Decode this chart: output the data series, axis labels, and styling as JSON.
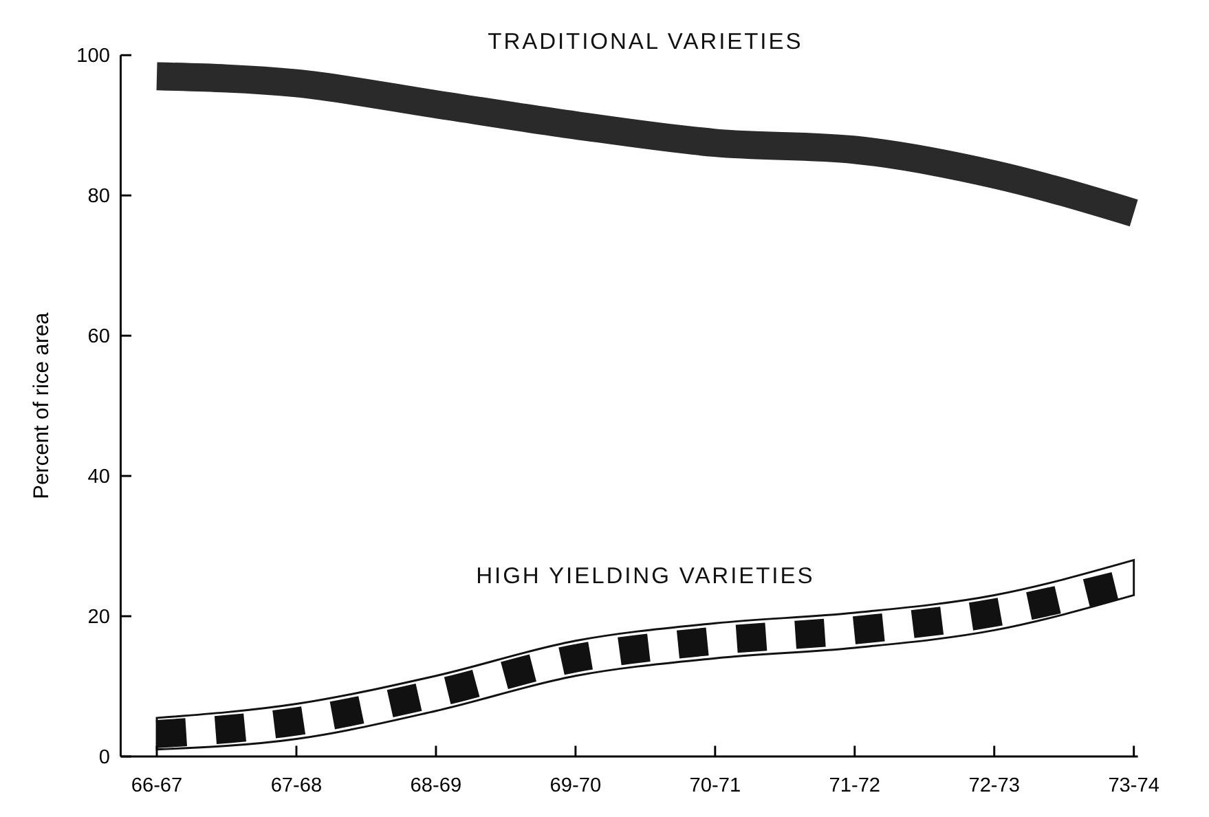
{
  "chart_data": {
    "type": "line",
    "ylabel": "Percent of rice area",
    "categories": [
      "66-67",
      "67-68",
      "68-69",
      "69-70",
      "70-71",
      "71-72",
      "72-73",
      "73-74"
    ],
    "series": [
      {
        "name": "TRADITIONAL VARIETIES",
        "color": "#2a2a2a",
        "line_style": "solid",
        "values": [
          97,
          96,
          93,
          90,
          87.5,
          86.5,
          83,
          77.5
        ]
      },
      {
        "name": "HIGH YIELDING VARIETIES",
        "color": "#111111",
        "line_style": "dashed",
        "values": [
          3.2,
          5,
          9,
          14,
          16.5,
          18,
          20.5,
          25
        ],
        "lower": [
          1,
          2.5,
          6.5,
          11.5,
          14,
          15.5,
          18,
          23
        ],
        "upper": [
          5.5,
          7.5,
          11.5,
          16.5,
          19,
          20.5,
          23,
          28
        ]
      }
    ],
    "ylim": [
      0,
      100
    ],
    "yticks": [
      0,
      20,
      40,
      60,
      80,
      100
    ],
    "grid": false
  }
}
